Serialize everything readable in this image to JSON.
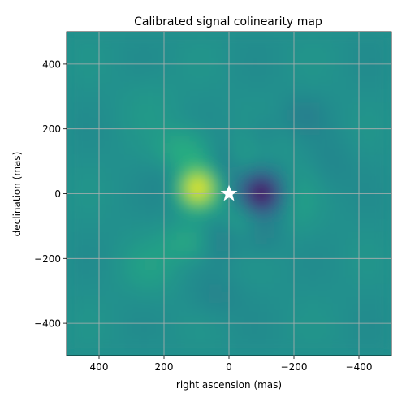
{
  "chart_data": {
    "type": "heatmap",
    "title": "Calibrated signal colinearity map",
    "xlabel": "right ascension (mas)",
    "ylabel": "declination (mas)",
    "xlim": [
      500,
      -500
    ],
    "ylim": [
      -500,
      500
    ],
    "x_ticks": [
      400,
      200,
      0,
      -200,
      -400
    ],
    "y_ticks": [
      -400,
      -200,
      0,
      200,
      400
    ],
    "x_tick_labels": [
      "400",
      "200",
      "0",
      "−200",
      "−400"
    ],
    "y_tick_labels": [
      "−400",
      "−200",
      "0",
      "200",
      "400"
    ],
    "grid": true,
    "colormap": "viridis",
    "features": [
      {
        "kind": "maximum",
        "x": 95,
        "y": 15,
        "level": 1.0
      },
      {
        "kind": "minimum",
        "x": -100,
        "y": 0,
        "level": -1.0
      }
    ],
    "marker": {
      "shape": "star",
      "x": 0,
      "y": 0,
      "color": "#ffffff"
    }
  }
}
